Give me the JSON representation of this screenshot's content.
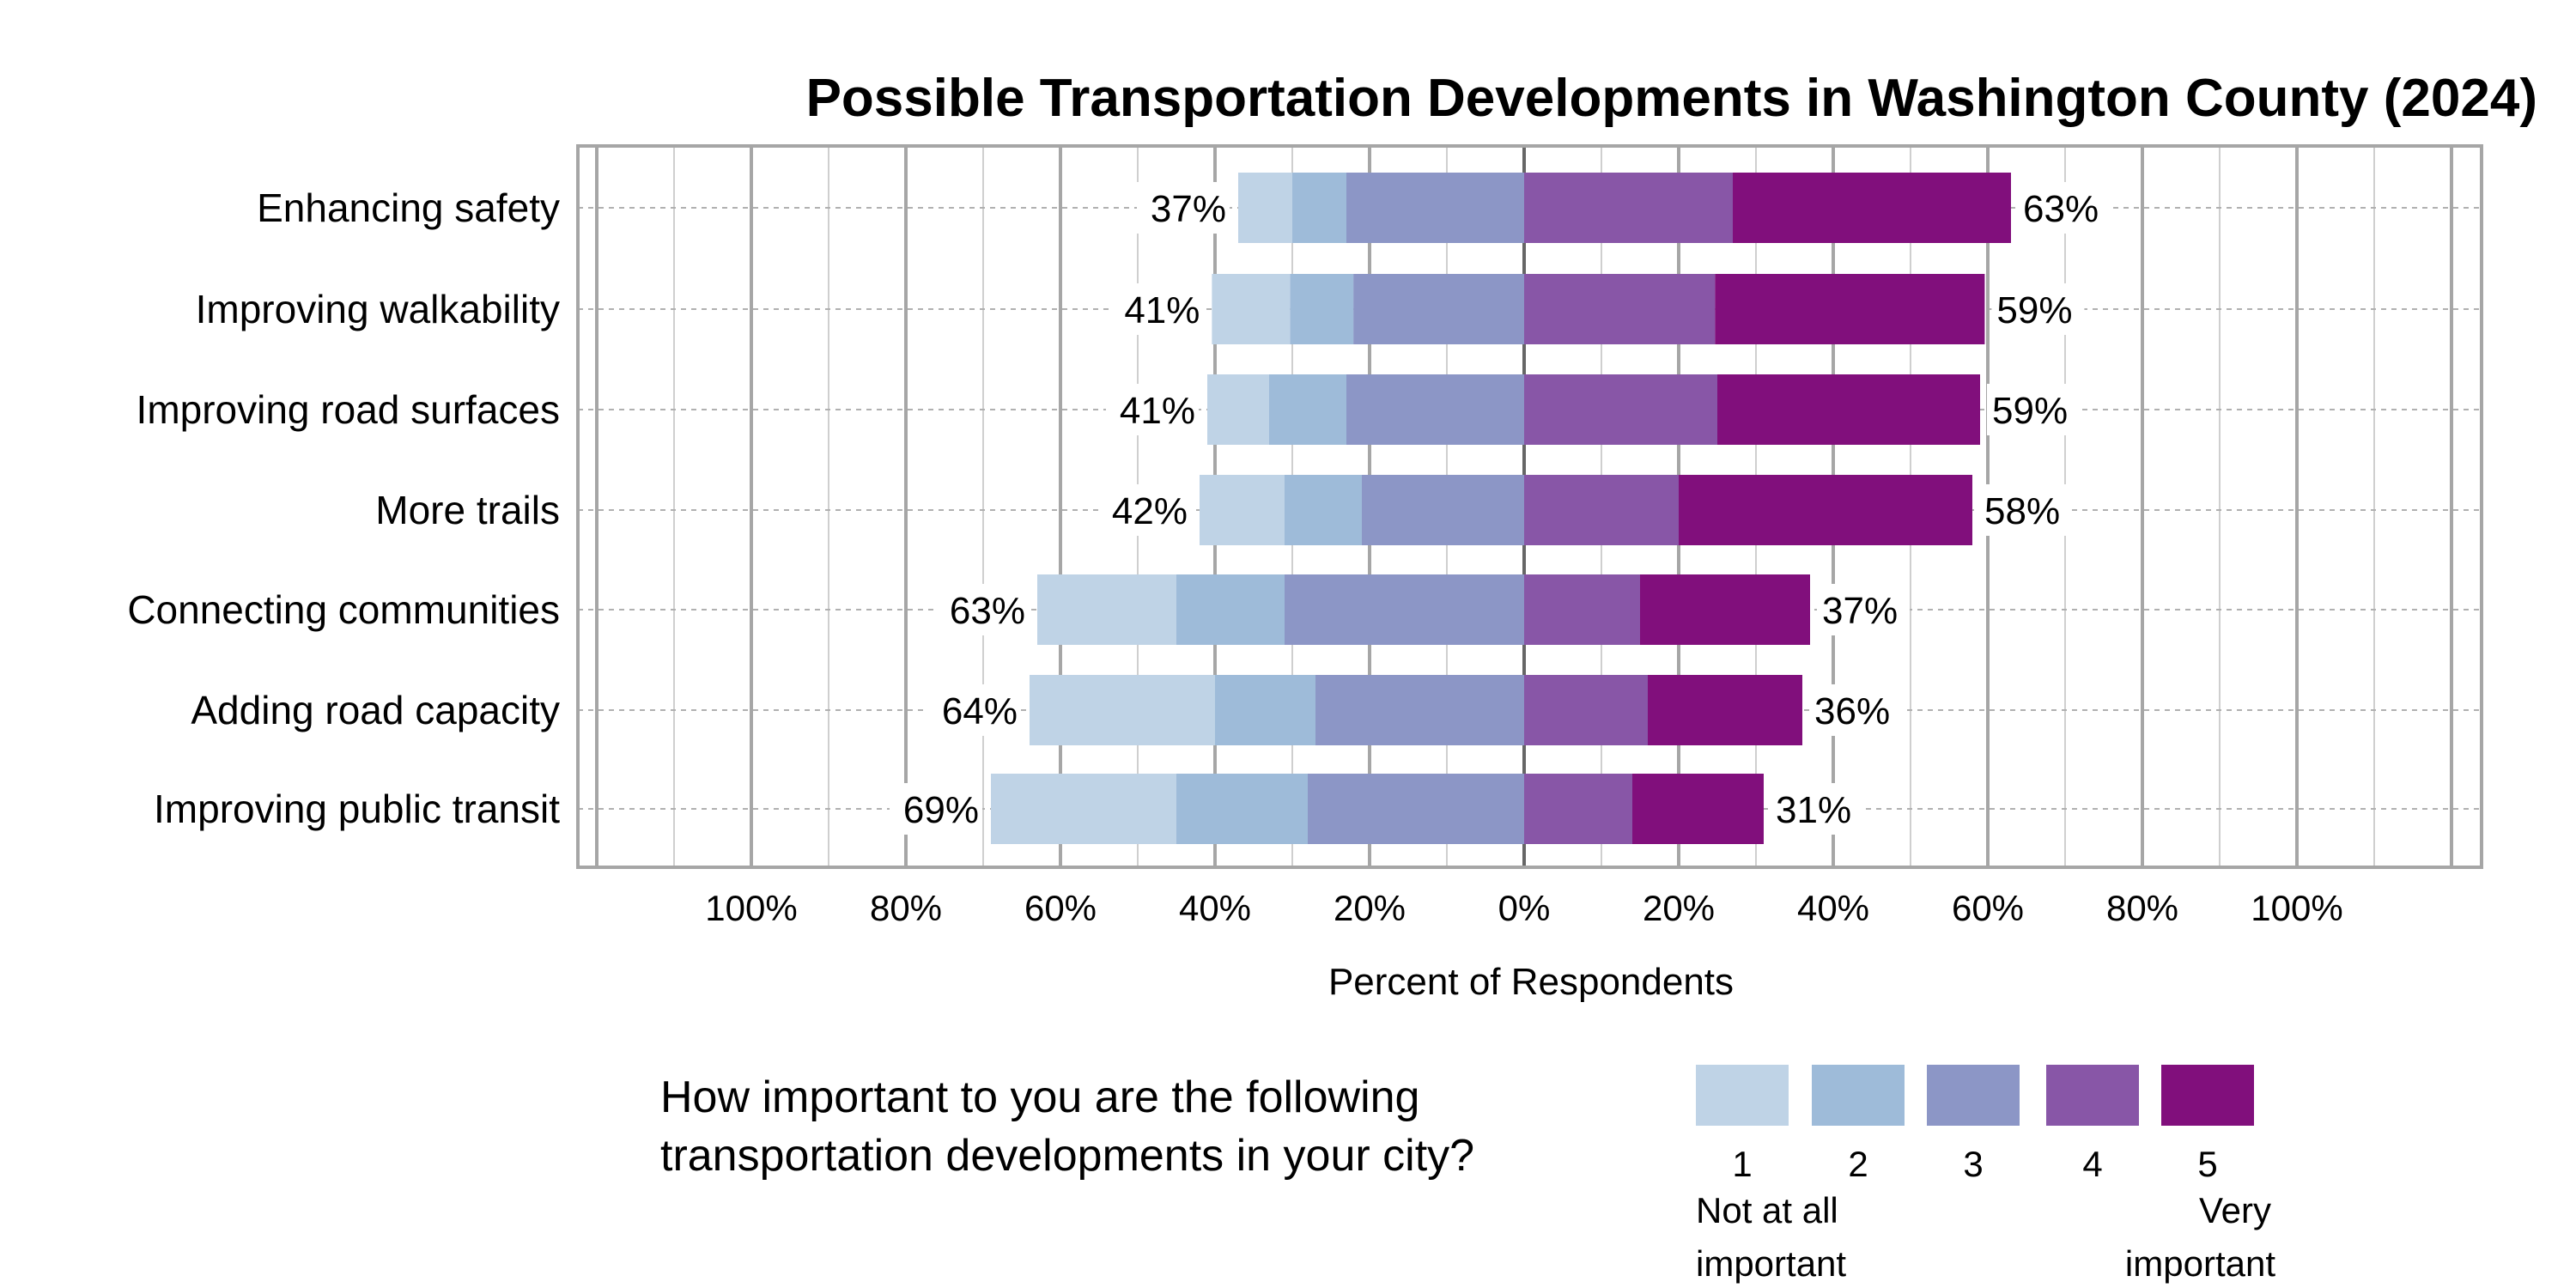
{
  "chart_data": {
    "type": "bar",
    "subtype": "diverging-stacked-horizontal",
    "title": "Possible Transportation Developments in Washington County (2024)",
    "xlabel": "Percent of Respondents",
    "ylabel": "",
    "xlim": [
      -122,
      124
    ],
    "grid": true,
    "x_ticks": [
      -100,
      -80,
      -60,
      -40,
      -20,
      0,
      20,
      40,
      60,
      80,
      100
    ],
    "x_tick_labels": [
      "100%",
      "80%",
      "60%",
      "40%",
      "20%",
      "0%",
      "20%",
      "40%",
      "60%",
      "80%",
      "100%"
    ],
    "categories": [
      "Enhancing safety",
      "Improving walkability",
      "Improving road surfaces",
      "More trails",
      "Connecting communities",
      "Adding road capacity",
      "Improving public transit"
    ],
    "series": [
      {
        "name": "1",
        "side": "left",
        "color": "#bfd3e6",
        "values": [
          7,
          10.1,
          8,
          11,
          18,
          24,
          24
        ]
      },
      {
        "name": "2",
        "side": "left",
        "color": "#9ebbd9",
        "values": [
          7,
          8.2,
          10,
          10,
          14,
          13,
          17
        ]
      },
      {
        "name": "3",
        "side": "left",
        "color": "#8c96c6",
        "values": [
          23,
          22.1,
          23,
          21,
          31,
          27,
          28
        ]
      },
      {
        "name": "4",
        "side": "right",
        "color": "#8856a7",
        "values": [
          27,
          24.7,
          25,
          20,
          15,
          16,
          14
        ]
      },
      {
        "name": "5",
        "side": "right",
        "color": "#810f7c",
        "values": [
          36,
          34.9,
          34,
          38,
          22,
          20,
          17
        ]
      }
    ],
    "left_totals": [
      "37%",
      "41%",
      "41%",
      "42%",
      "63%",
      "64%",
      "69%"
    ],
    "right_totals": [
      "63%",
      "59%",
      "59%",
      "58%",
      "37%",
      "36%",
      "31%"
    ],
    "legend": {
      "title_lines": [
        "How important to you are the following",
        "transportation developments in your city?"
      ],
      "labels": [
        "1",
        "2",
        "3",
        "4",
        "5"
      ],
      "low_anchor": [
        "Not at all",
        "important"
      ],
      "high_anchor": [
        "Very",
        "important"
      ],
      "placement": "bottom"
    }
  }
}
